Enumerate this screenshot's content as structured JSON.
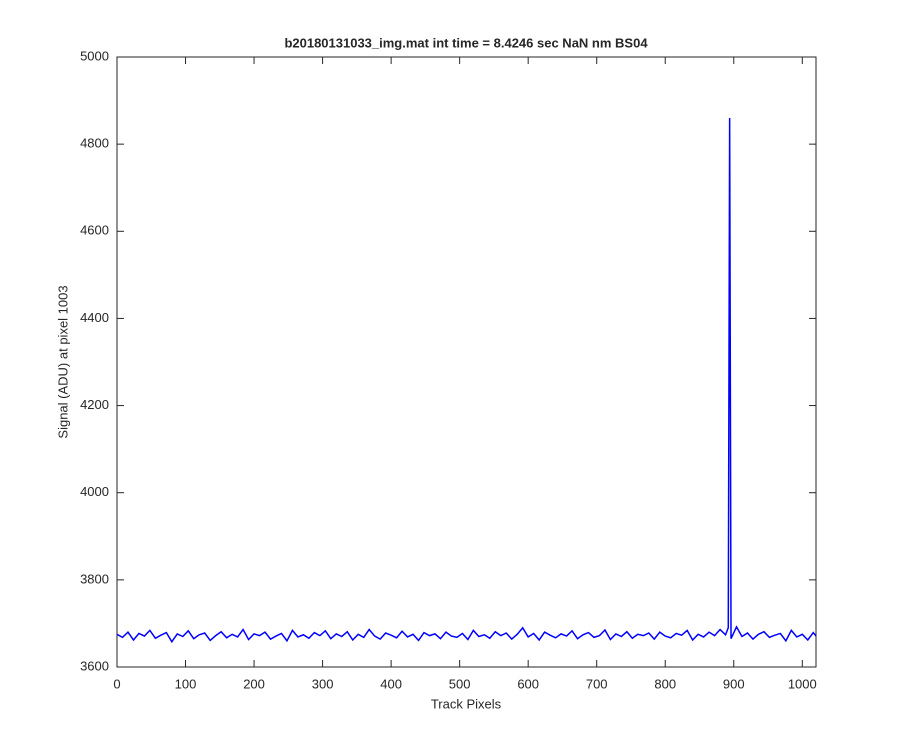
{
  "chart_data": {
    "type": "line",
    "title": "b20180131033_img.mat int time = 8.4246 sec  NaN nm BS04",
    "x_label": "Track Pixels",
    "y_label": "Signal (ADU) at pixel 1003",
    "xlim": [
      0,
      1020
    ],
    "ylim": [
      3600,
      5000
    ],
    "xticks": [
      0,
      100,
      200,
      300,
      400,
      500,
      600,
      700,
      800,
      900,
      1000
    ],
    "yticks": [
      3600,
      3800,
      4000,
      4200,
      4400,
      4600,
      4800,
      5000
    ],
    "grid": false,
    "series": [
      {
        "color": "#0000ff",
        "x": [
          0,
          8,
          16,
          24,
          32,
          40,
          48,
          56,
          64,
          72,
          80,
          88,
          96,
          104,
          112,
          120,
          128,
          136,
          144,
          152,
          160,
          168,
          176,
          184,
          192,
          200,
          208,
          216,
          224,
          232,
          240,
          248,
          256,
          264,
          272,
          280,
          288,
          296,
          304,
          312,
          320,
          328,
          336,
          344,
          352,
          360,
          368,
          376,
          384,
          392,
          400,
          408,
          416,
          424,
          432,
          440,
          448,
          456,
          464,
          472,
          480,
          488,
          496,
          504,
          512,
          520,
          528,
          536,
          544,
          552,
          560,
          568,
          576,
          584,
          592,
          600,
          608,
          616,
          624,
          632,
          640,
          648,
          656,
          664,
          672,
          680,
          688,
          696,
          704,
          712,
          720,
          728,
          736,
          744,
          752,
          760,
          768,
          776,
          784,
          792,
          800,
          808,
          816,
          824,
          832,
          840,
          848,
          856,
          864,
          872,
          880,
          888,
          892,
          894,
          896,
          904,
          912,
          920,
          928,
          936,
          944,
          952,
          960,
          968,
          976,
          984,
          992,
          1000,
          1008,
          1016,
          1020
        ],
        "values": [
          3675,
          3668,
          3680,
          3662,
          3677,
          3671,
          3684,
          3666,
          3673,
          3679,
          3658,
          3676,
          3670,
          3683,
          3665,
          3674,
          3678,
          3661,
          3672,
          3681,
          3667,
          3675,
          3669,
          3686,
          3663,
          3676,
          3672,
          3680,
          3664,
          3671,
          3677,
          3660,
          3684,
          3669,
          3674,
          3666,
          3679,
          3672,
          3683,
          3665,
          3676,
          3670,
          3681,
          3662,
          3675,
          3668,
          3686,
          3671,
          3664,
          3678,
          3673,
          3667,
          3682,
          3669,
          3675,
          3661,
          3679,
          3672,
          3676,
          3665,
          3680,
          3671,
          3668,
          3677,
          3663,
          3684,
          3670,
          3674,
          3666,
          3681,
          3672,
          3678,
          3664,
          3675,
          3690,
          3669,
          3677,
          3662,
          3680,
          3673,
          3667,
          3676,
          3671,
          3683,
          3665,
          3674,
          3679,
          3668,
          3672,
          3685,
          3663,
          3676,
          3670,
          3681,
          3666,
          3675,
          3672,
          3678,
          3664,
          3680,
          3671,
          3667,
          3677,
          3673,
          3684,
          3662,
          3675,
          3669,
          3680,
          3672,
          3686,
          3674,
          3690,
          4860,
          3665,
          3692,
          3670,
          3678,
          3664,
          3675,
          3681,
          3668,
          3673,
          3677,
          3660,
          3684,
          3669,
          3675,
          3662,
          3679,
          3671
        ]
      }
    ]
  }
}
